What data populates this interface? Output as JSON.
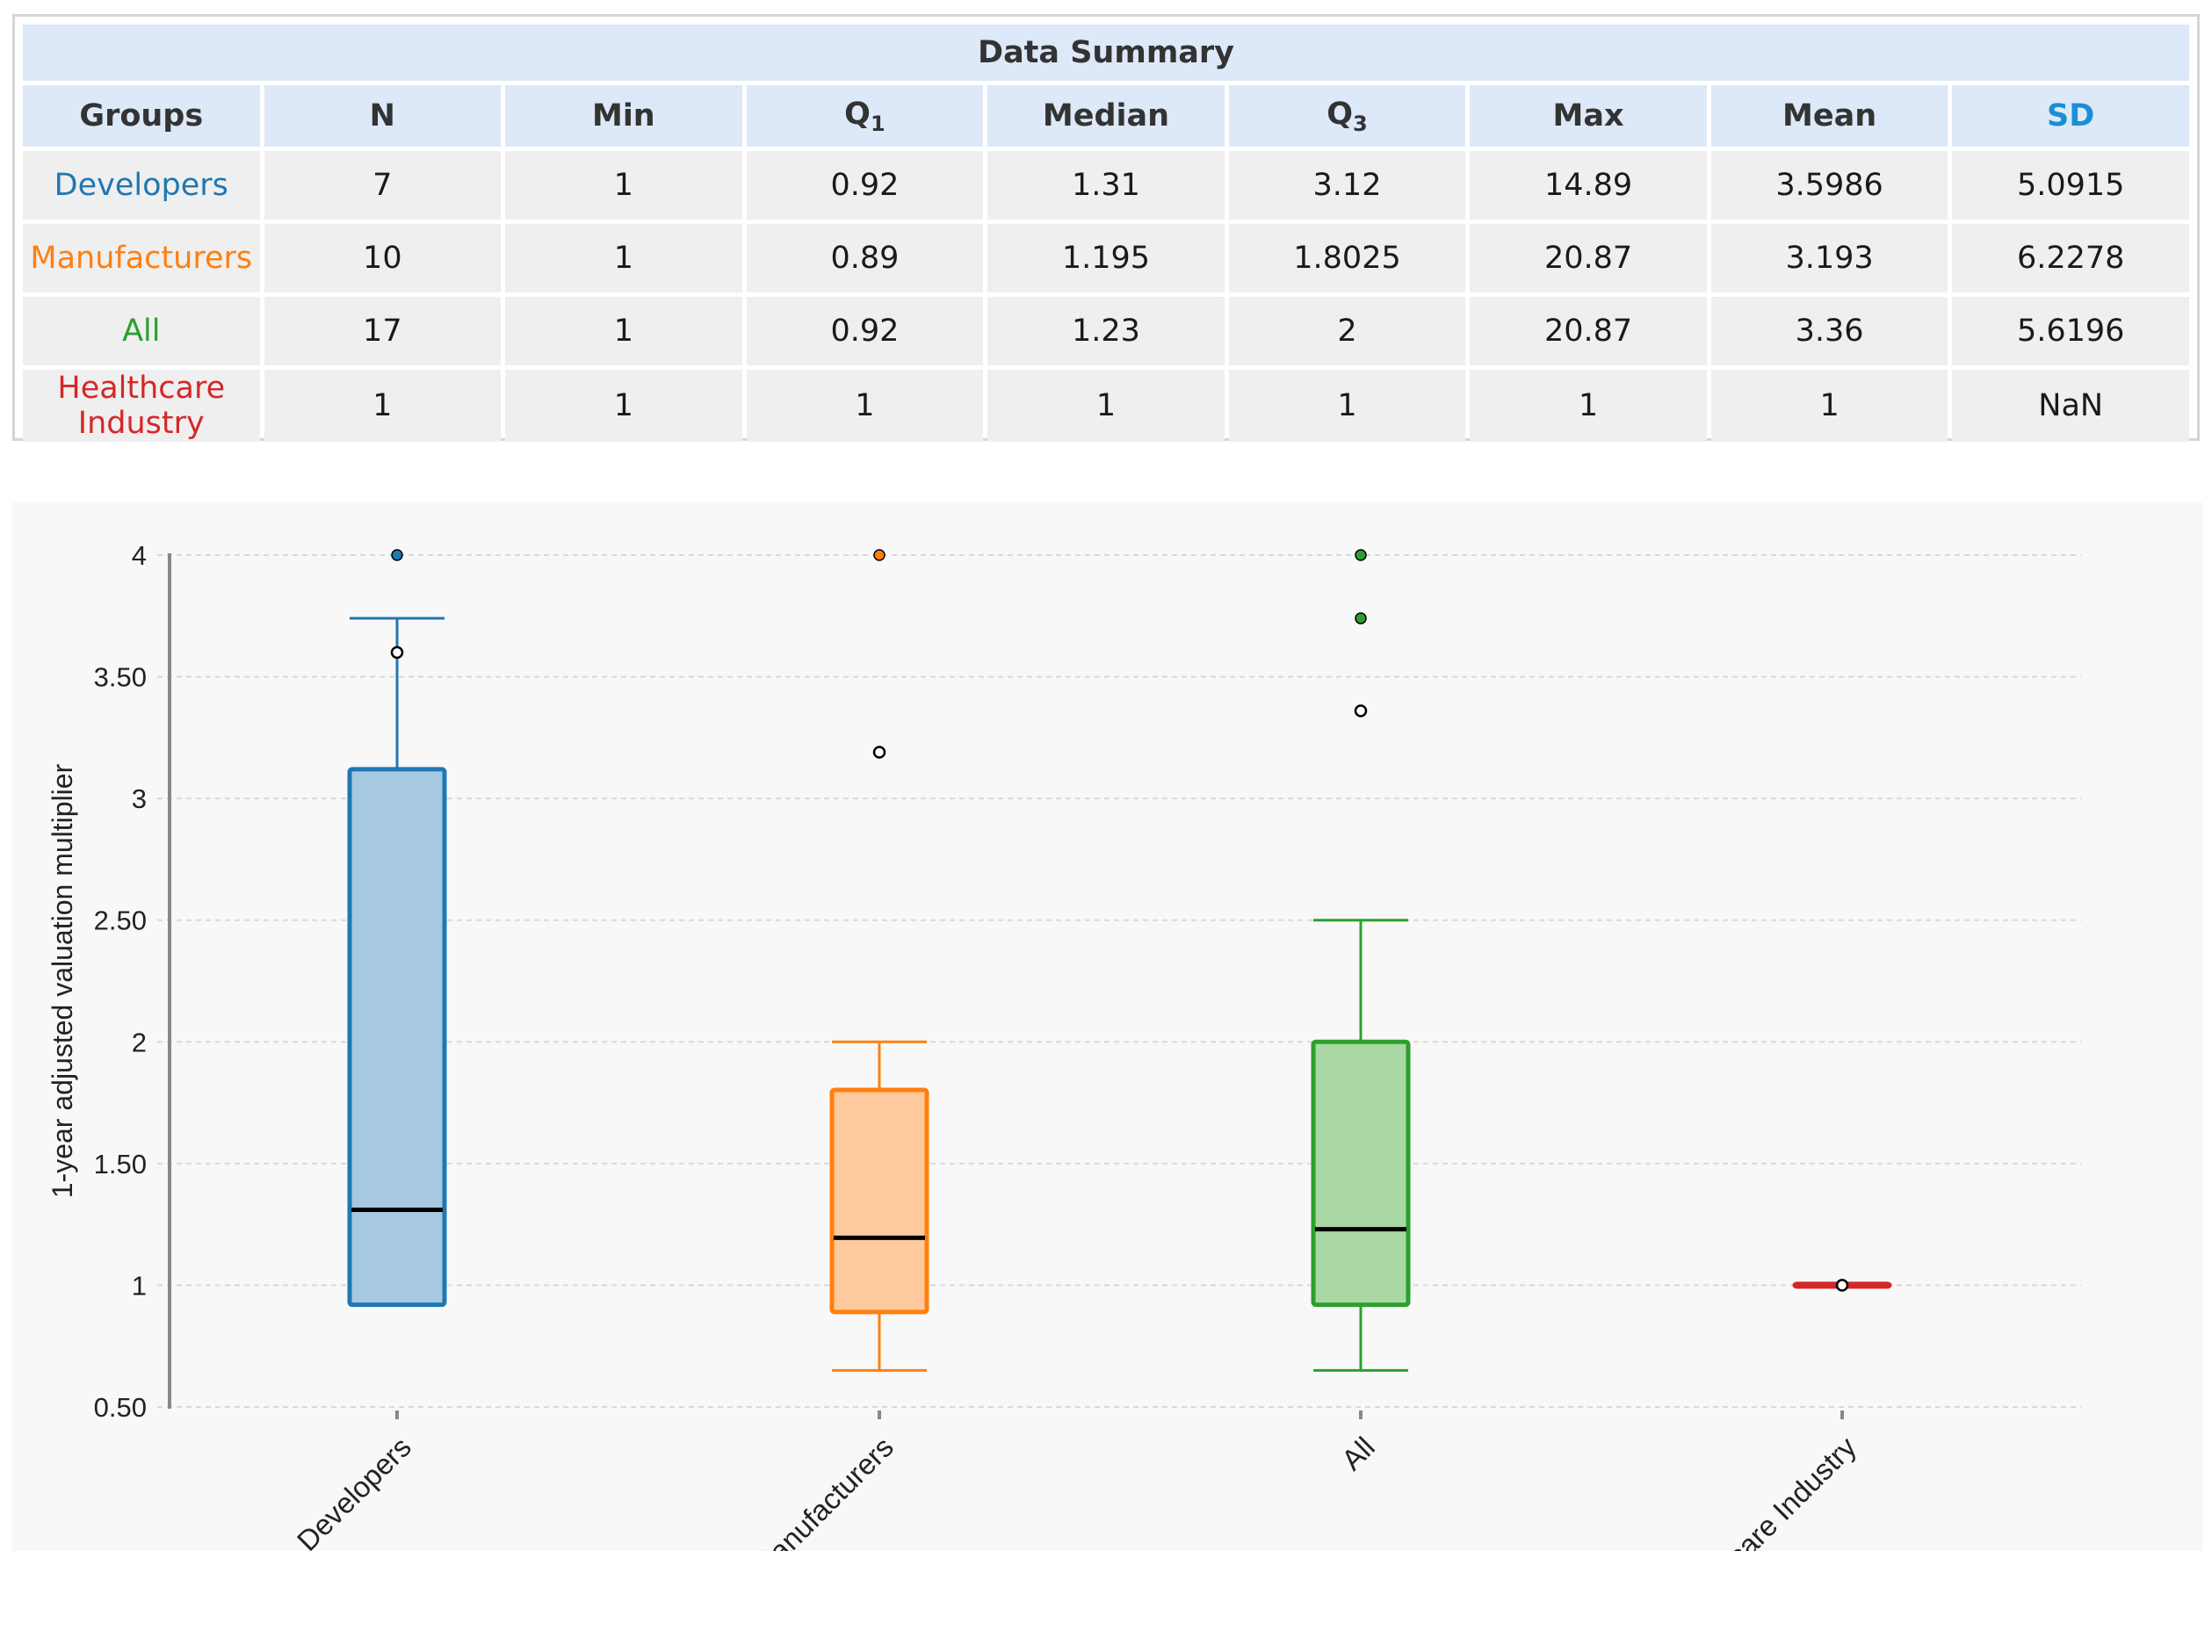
{
  "summary_table": {
    "title": "Data Summary",
    "headers": [
      "Groups",
      "N",
      "Min",
      "Q",
      "Median",
      "Q",
      "Max",
      "Mean",
      "SD"
    ],
    "q1_sub": "1",
    "q3_sub": "3",
    "rows": [
      {
        "group": "Developers",
        "color": "#1f77b4",
        "cells": [
          "7",
          "1",
          "0.92",
          "1.31",
          "3.12",
          "14.89",
          "3.5986",
          "5.0915"
        ]
      },
      {
        "group": "Manufacturers",
        "color": "#ff7f0e",
        "cells": [
          "10",
          "1",
          "0.89",
          "1.195",
          "1.8025",
          "20.87",
          "3.193",
          "6.2278"
        ]
      },
      {
        "group": "All",
        "color": "#2ca02c",
        "cells": [
          "17",
          "1",
          "0.92",
          "1.23",
          "2",
          "20.87",
          "3.36",
          "5.6196"
        ]
      },
      {
        "group": "Healthcare Industry",
        "color": "#d62728",
        "cells": [
          "1",
          "1",
          "1",
          "1",
          "1",
          "1",
          "1",
          "NaN"
        ]
      }
    ]
  },
  "chart_data": {
    "type": "box",
    "ylabel": "1-year adjusted valuation multiplier",
    "ylim": [
      0.5,
      4
    ],
    "yticks": [
      0.5,
      1,
      1.5,
      2,
      2.5,
      3,
      3.5,
      4
    ],
    "ytick_labels": [
      "0.50",
      "1",
      "1.50",
      "2",
      "2.50",
      "3",
      "3.50",
      "4"
    ],
    "grid": true,
    "categories": [
      "Developers",
      "Manufacturers",
      "All",
      "Healthcare Industry"
    ],
    "boxes": [
      {
        "name": "Developers",
        "color": "#1f77b4",
        "fill": "#a6c8e0",
        "q1": 0.92,
        "median": 1.31,
        "q3": 3.12,
        "whisker_low": 0.92,
        "whisker_high": 3.74,
        "points": [
          {
            "y": 4,
            "filled": true
          },
          {
            "y": 3.6,
            "filled": false
          }
        ]
      },
      {
        "name": "Manufacturers",
        "color": "#ff7f0e",
        "fill": "#fdc99d",
        "q1": 0.89,
        "median": 1.195,
        "q3": 1.8025,
        "whisker_low": 0.65,
        "whisker_high": 2.0,
        "points": [
          {
            "y": 4,
            "filled": true
          },
          {
            "y": 3.19,
            "filled": false
          }
        ]
      },
      {
        "name": "All",
        "color": "#2ca02c",
        "fill": "#aad8a4",
        "q1": 0.92,
        "median": 1.23,
        "q3": 2.0,
        "whisker_low": 0.65,
        "whisker_high": 2.5,
        "points": [
          {
            "y": 4,
            "filled": true
          },
          {
            "y": 3.74,
            "filled": true
          },
          {
            "y": 3.36,
            "filled": false
          }
        ]
      },
      {
        "name": "Healthcare Industry",
        "color": "#d62728",
        "fill": "#eea3a3",
        "q1": 1,
        "median": 1,
        "q3": 1,
        "whisker_low": 1,
        "whisker_high": 1,
        "points": [
          {
            "y": 1,
            "filled": false
          }
        ]
      }
    ]
  }
}
